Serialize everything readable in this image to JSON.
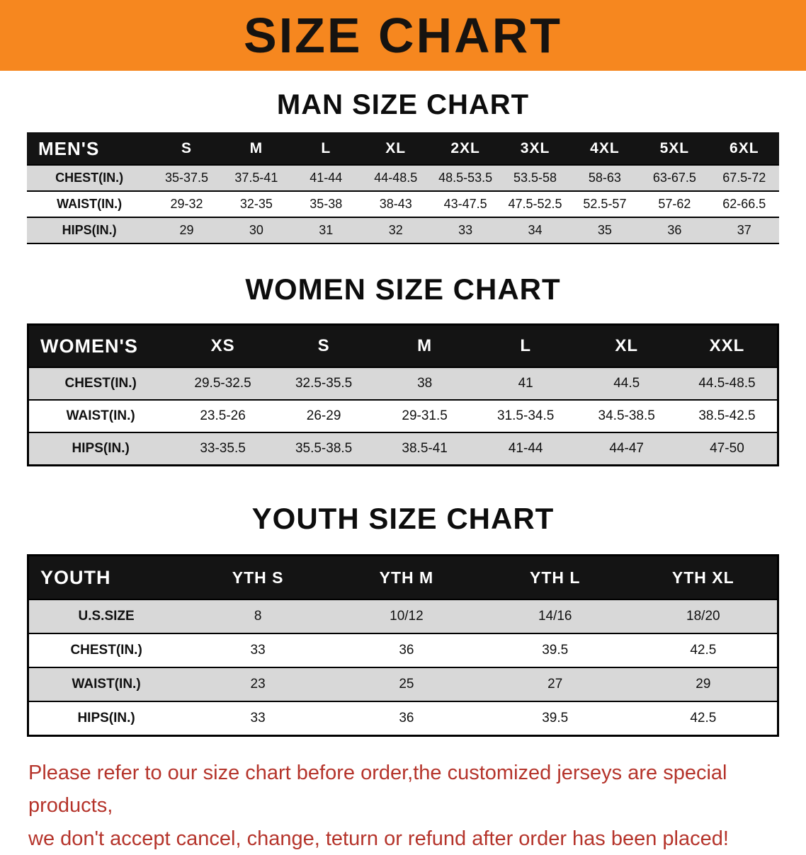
{
  "banner": {
    "title": "SIZE CHART"
  },
  "men": {
    "heading": "MAN SIZE CHART",
    "table": {
      "header": [
        "MEN'S",
        "S",
        "M",
        "L",
        "XL",
        "2XL",
        "3XL",
        "4XL",
        "5XL",
        "6XL"
      ],
      "rows": [
        [
          "CHEST(IN.)",
          "35-37.5",
          "37.5-41",
          "41-44",
          "44-48.5",
          "48.5-53.5",
          "53.5-58",
          "58-63",
          "63-67.5",
          "67.5-72"
        ],
        [
          "WAIST(IN.)",
          "29-32",
          "32-35",
          "35-38",
          "38-43",
          "43-47.5",
          "47.5-52.5",
          "52.5-57",
          "57-62",
          "62-66.5"
        ],
        [
          "HIPS(IN.)",
          "29",
          "30",
          "31",
          "32",
          "33",
          "34",
          "35",
          "36",
          "37"
        ]
      ]
    }
  },
  "women": {
    "heading": "WOMEN SIZE CHART",
    "table": {
      "header": [
        "WOMEN'S",
        "XS",
        "S",
        "M",
        "L",
        "XL",
        "XXL"
      ],
      "rows": [
        [
          "CHEST(IN.)",
          "29.5-32.5",
          "32.5-35.5",
          "38",
          "41",
          "44.5",
          "44.5-48.5"
        ],
        [
          "WAIST(IN.)",
          "23.5-26",
          "26-29",
          "29-31.5",
          "31.5-34.5",
          "34.5-38.5",
          "38.5-42.5"
        ],
        [
          "HIPS(IN.)",
          "33-35.5",
          "35.5-38.5",
          "38.5-41",
          "41-44",
          "44-47",
          "47-50"
        ]
      ]
    }
  },
  "youth": {
    "heading": "YOUTH SIZE CHART",
    "table": {
      "header": [
        "YOUTH",
        "YTH S",
        "YTH M",
        "YTH L",
        "YTH XL"
      ],
      "rows": [
        [
          "U.S.SIZE",
          "8",
          "10/12",
          "14/16",
          "18/20"
        ],
        [
          "CHEST(IN.)",
          "33",
          "36",
          "39.5",
          "42.5"
        ],
        [
          "WAIST(IN.)",
          "23",
          "25",
          "27",
          "29"
        ],
        [
          "HIPS(IN.)",
          "33",
          "36",
          "39.5",
          "42.5"
        ]
      ]
    }
  },
  "disclaimer": {
    "line1": "Please refer to our size chart before order,the customized jerseys are special products,",
    "line2": "we don't accept cancel, change, teturn or refund after order has been placed!"
  },
  "colors": {
    "banner_bg": "#f6871f",
    "ink": "#161310",
    "table_header_bg": "#141414",
    "table_header_text": "#ffffff",
    "row_alt_bg": "#d8d8d8",
    "border": "#000000",
    "disclaimer_text": "#b5342b"
  }
}
